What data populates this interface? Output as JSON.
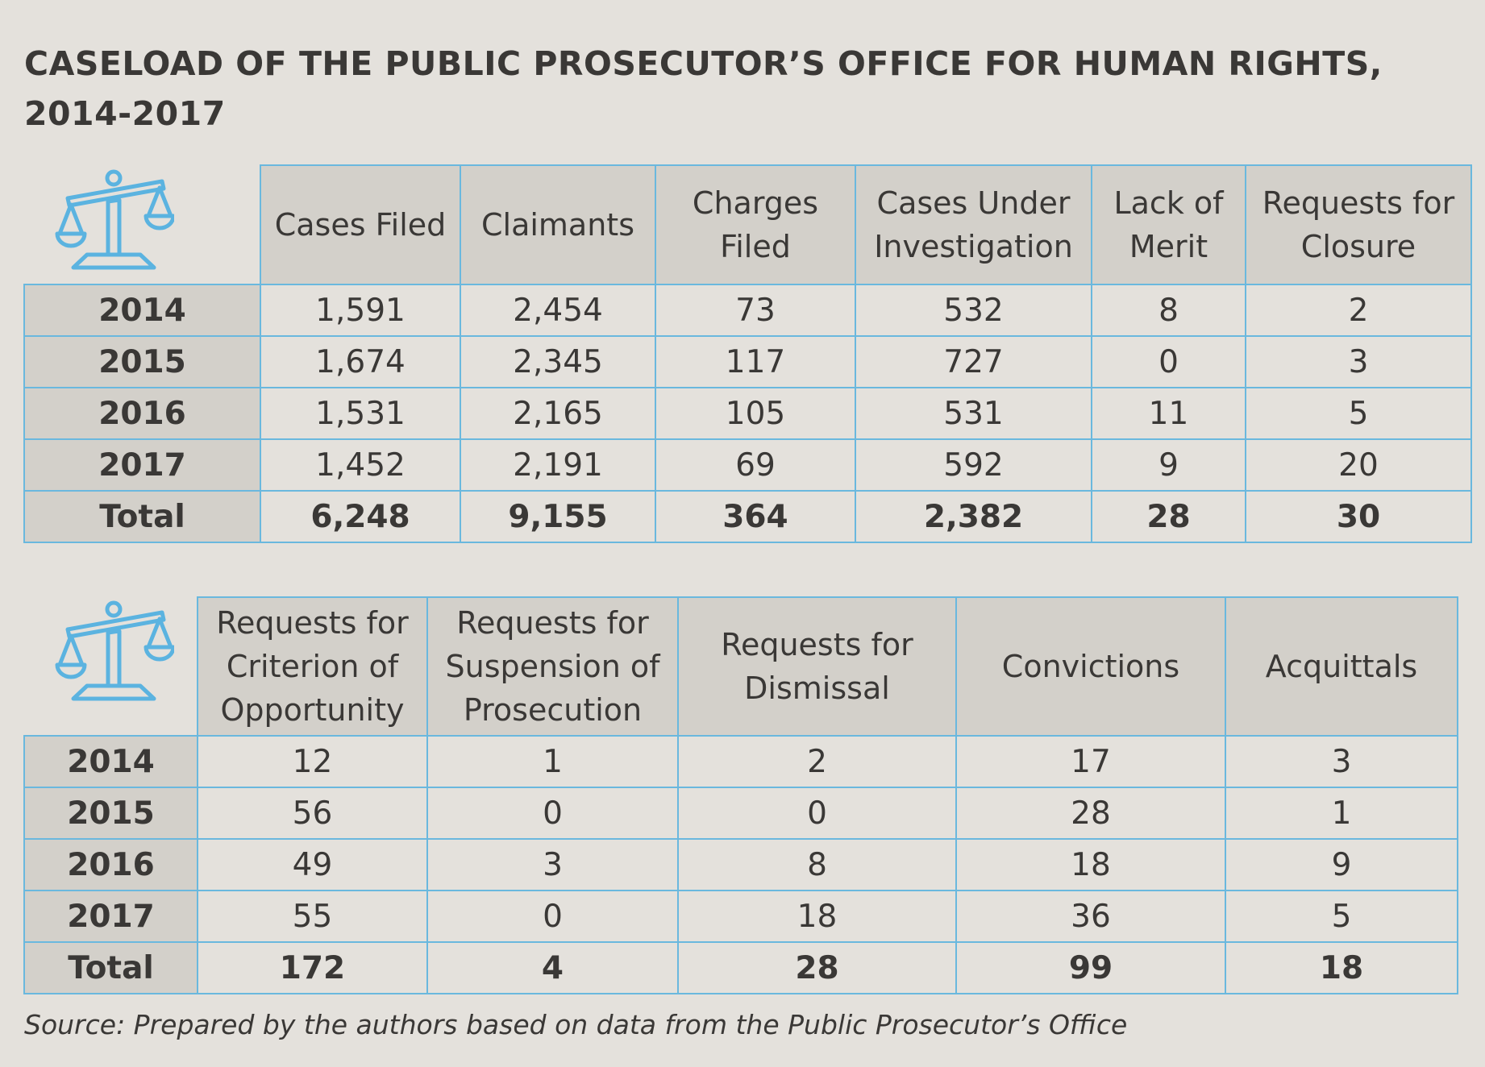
{
  "title_line1": "CASELOAD OF THE PUBLIC PROSECUTOR’S OFFICE FOR HUMAN RIGHTS,",
  "title_line2": "2014-2017",
  "colors": {
    "background": "#e4e1dc",
    "header_fill": "#d3d0ca",
    "border": "#6ab8de",
    "icon": "#5bb3e0",
    "text": "#3a3836"
  },
  "icon_name": "scales-of-justice-icon",
  "chart_data": [
    {
      "type": "table",
      "columns": [
        "Cases Filed",
        "Claimants",
        "Charges Filed",
        "Cases Under Investigation",
        "Lack of Merit",
        "Requests for Closure"
      ],
      "rows": [
        {
          "label": "2014",
          "values": [
            "1,591",
            "2,454",
            "73",
            "532",
            "8",
            "2"
          ]
        },
        {
          "label": "2015",
          "values": [
            "1,674",
            "2,345",
            "117",
            "727",
            "0",
            "3"
          ]
        },
        {
          "label": "2016",
          "values": [
            "1,531",
            "2,165",
            "105",
            "531",
            "11",
            "5"
          ]
        },
        {
          "label": "2017",
          "values": [
            "1,452",
            "2,191",
            "69",
            "592",
            "9",
            "20"
          ]
        },
        {
          "label": "Total",
          "values": [
            "6,248",
            "9,155",
            "364",
            "2,382",
            "28",
            "30"
          ]
        }
      ]
    },
    {
      "type": "table",
      "columns": [
        "Requests for Criterion of Opportunity",
        "Requests for Suspension of Prosecution",
        "Requests for Dismissal",
        "Convictions",
        "Acquittals"
      ],
      "rows": [
        {
          "label": "2014",
          "values": [
            "12",
            "1",
            "2",
            "17",
            "3"
          ]
        },
        {
          "label": "2015",
          "values": [
            "56",
            "0",
            "0",
            "28",
            "1"
          ]
        },
        {
          "label": "2016",
          "values": [
            "49",
            "3",
            "8",
            "18",
            "9"
          ]
        },
        {
          "label": "2017",
          "values": [
            "55",
            "0",
            "18",
            "36",
            "5"
          ]
        },
        {
          "label": "Total",
          "values": [
            "172",
            "4",
            "28",
            "99",
            "18"
          ]
        }
      ]
    }
  ],
  "source": "Source: Prepared by the authors based on data from the Public Prosecutor’s Office"
}
